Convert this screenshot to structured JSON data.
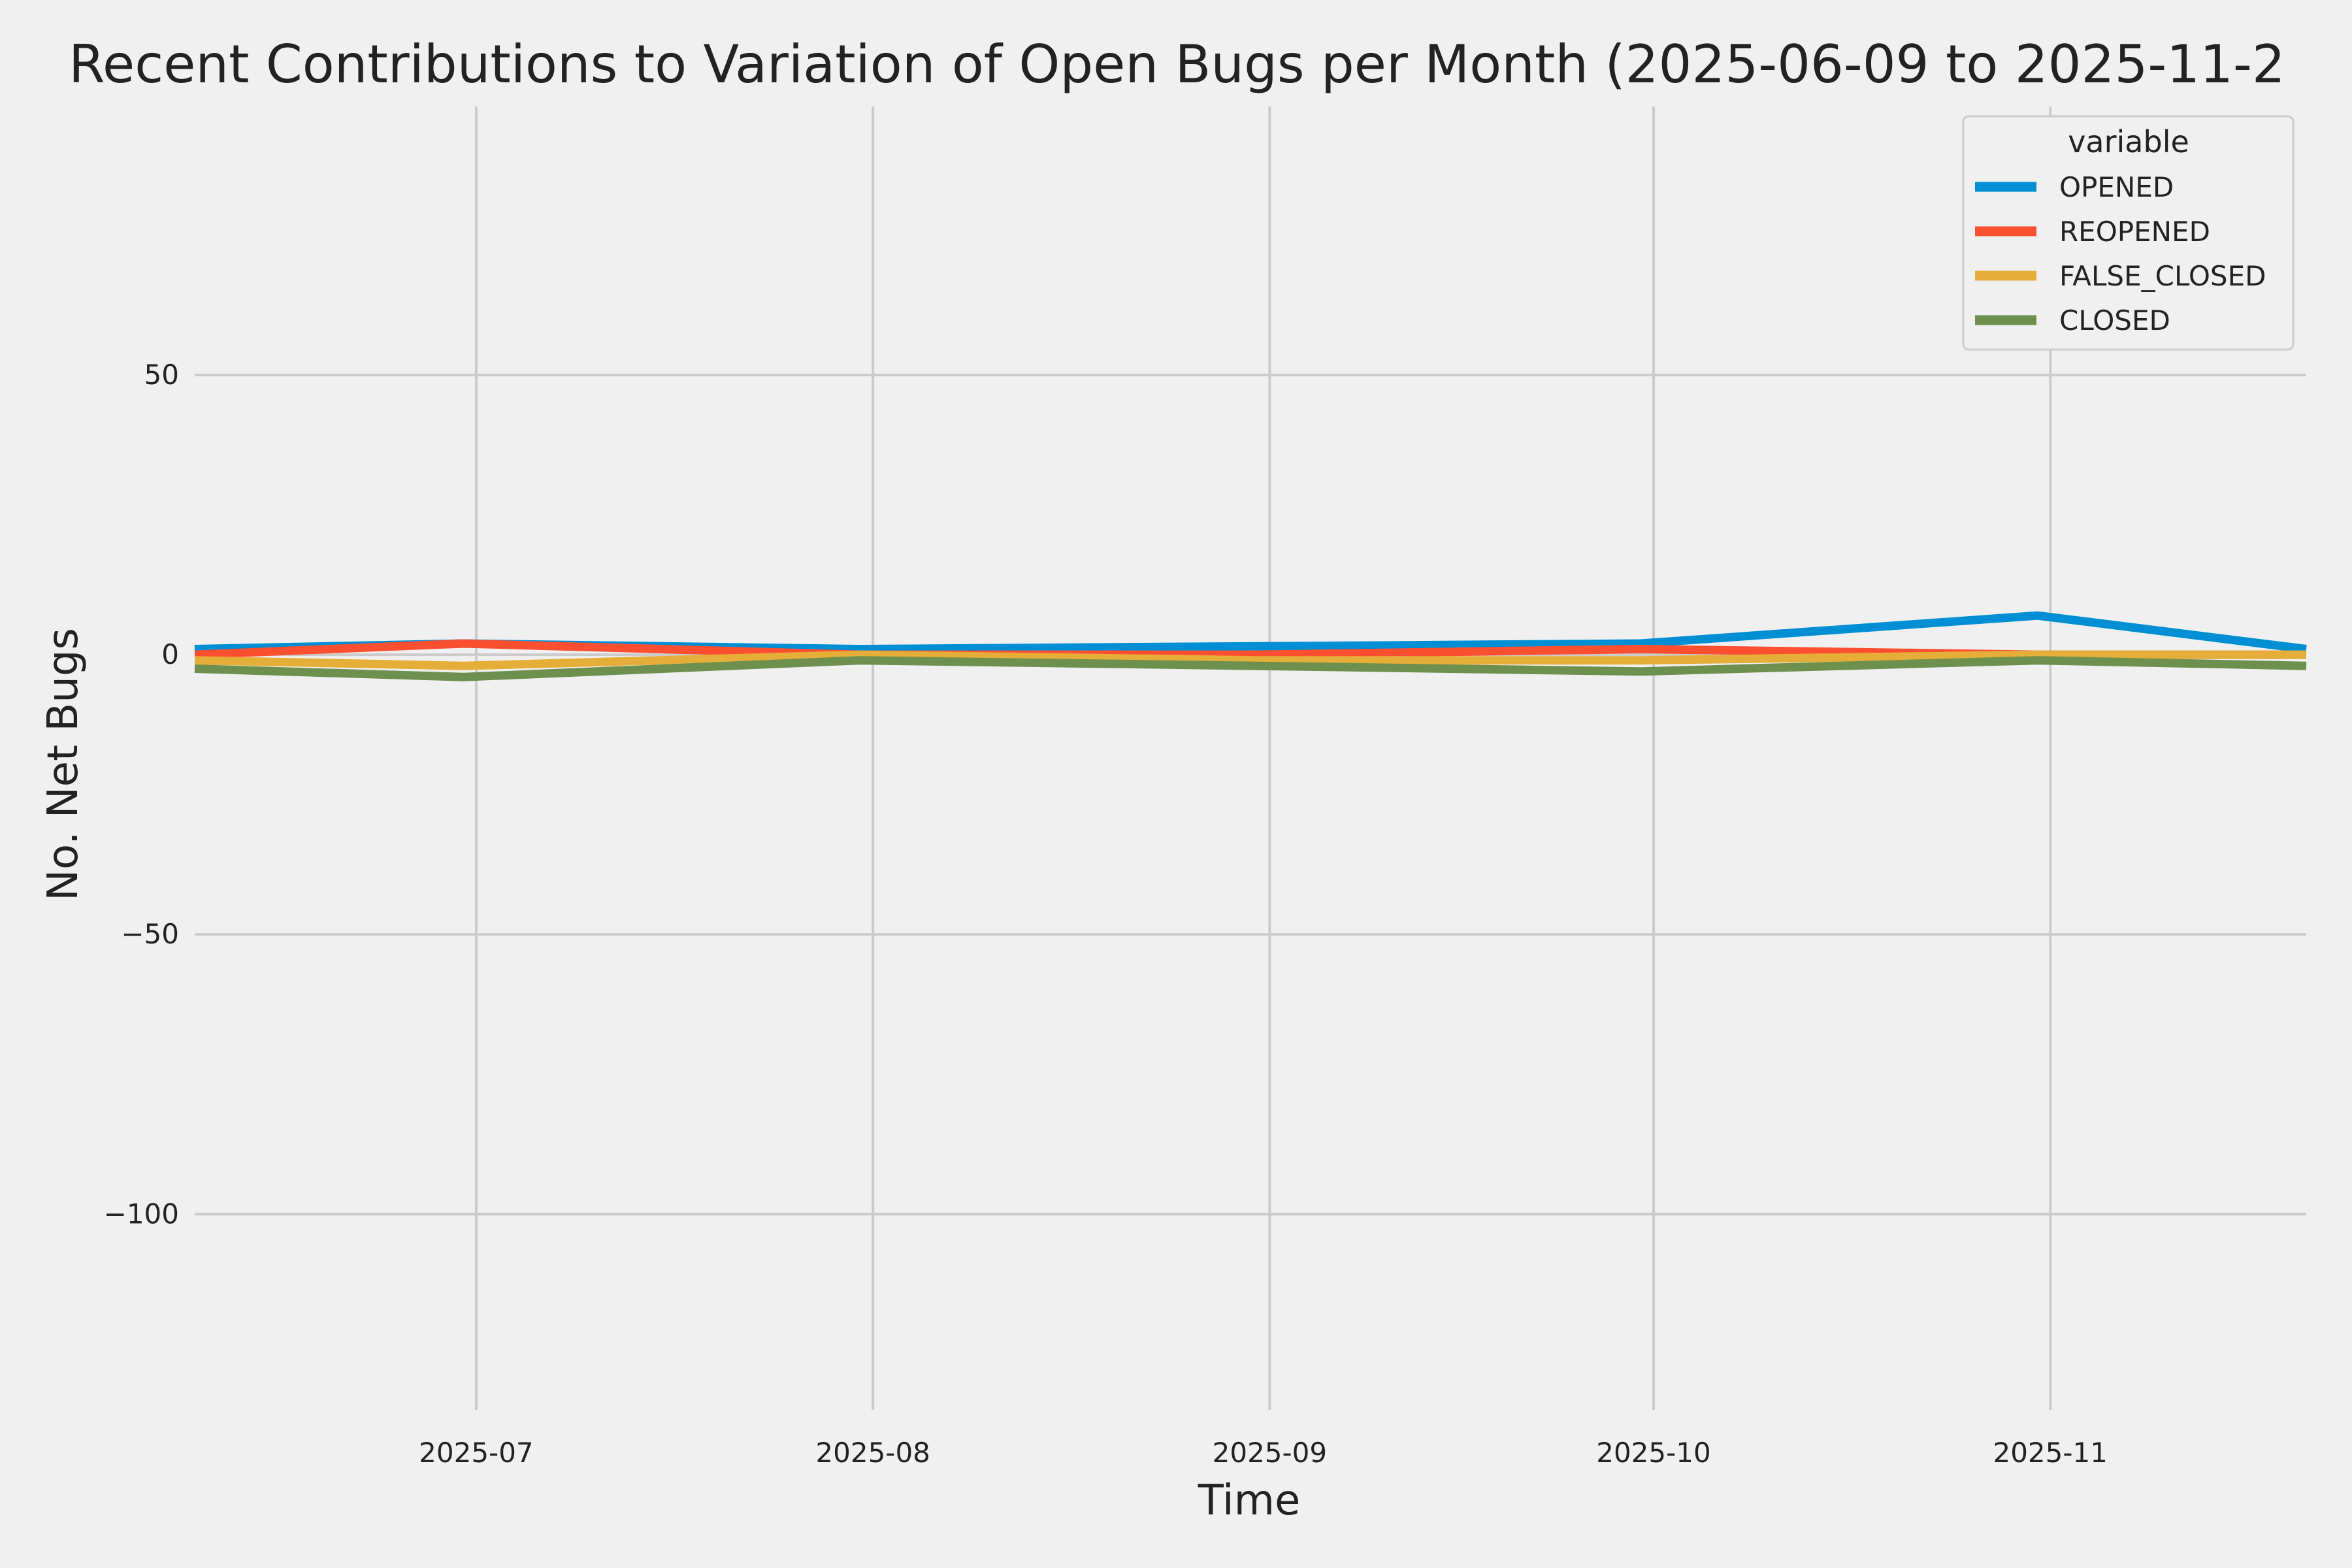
{
  "chart_data": {
    "type": "line",
    "title": "Recent Contributions to Variation of Open Bugs per Month (2025-06-09 to 2025-11-2",
    "xlabel": "Time",
    "ylabel": "No. Net Bugs",
    "x": [
      "2025-06-09",
      "2025-06-30",
      "2025-07-31",
      "2025-08-31",
      "2025-09-30",
      "2025-10-31",
      "2025-11-21"
    ],
    "xlim": [
      "2025-06-09",
      "2025-11-21"
    ],
    "ylim": [
      -135,
      98
    ],
    "x_ticks": [
      "2025-07",
      "2025-08",
      "2025-09",
      "2025-10",
      "2025-11"
    ],
    "x_tick_dates": [
      "2025-07-01",
      "2025-08-01",
      "2025-09-01",
      "2025-10-01",
      "2025-11-01"
    ],
    "y_ticks": [
      50,
      0,
      -50,
      -100
    ],
    "y_tick_labels": [
      "50",
      "0",
      "−50",
      "−100"
    ],
    "grid": true,
    "legend": {
      "title": "variable",
      "position": "top-right"
    },
    "series": [
      {
        "name": "OPENED",
        "color": "#008fd5",
        "values": [
          1,
          2,
          1,
          1.5,
          2,
          7,
          1
        ]
      },
      {
        "name": "REOPENED",
        "color": "#fc4f30",
        "values": [
          0,
          2,
          0,
          0,
          1,
          0,
          0
        ]
      },
      {
        "name": "FALSE_CLOSED",
        "color": "#e5ae38",
        "values": [
          -1,
          -2,
          0,
          -1,
          -1,
          0,
          0
        ]
      },
      {
        "name": "CLOSED",
        "color": "#6d904f",
        "values": [
          -2.5,
          -4,
          -1,
          -2,
          -3,
          -1,
          -2
        ]
      }
    ]
  }
}
